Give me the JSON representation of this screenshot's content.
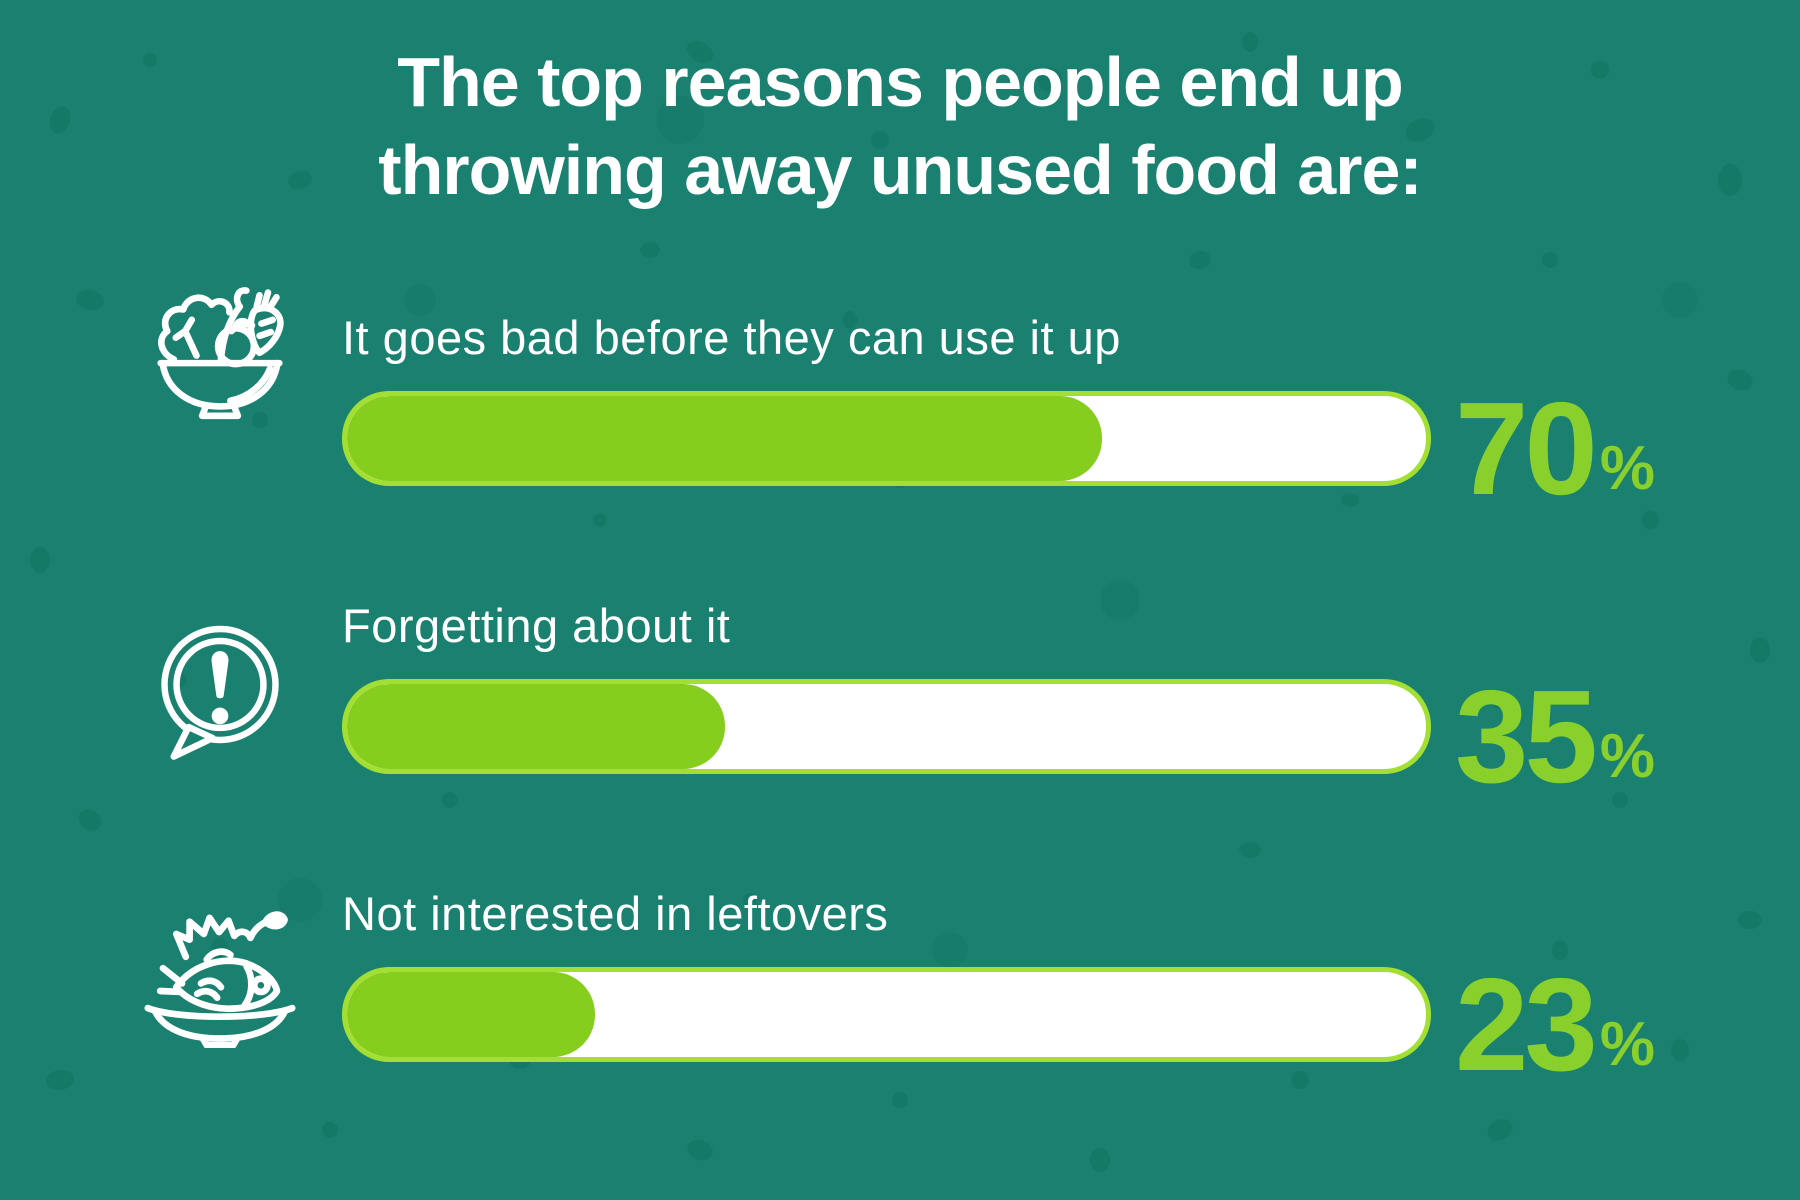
{
  "page": {
    "background_color": "#1a8170",
    "speckle_color": "#0d6a57",
    "bar_fill_color": "#85ce1d",
    "bar_border_color": "#a3df33",
    "bar_track_color": "#ffffff",
    "percent_text_color": "#8ad02c",
    "text_color": "#ffffff"
  },
  "title": {
    "lines": [
      "The top reasons people end up",
      "throwing away unused food are:"
    ]
  },
  "chart_data": {
    "type": "bar",
    "orientation": "horizontal",
    "title": "The top reasons people end up throwing away unused food are:",
    "value_range": [
      0,
      100
    ],
    "unit": "%",
    "grid": false,
    "legend": false,
    "categories": [
      "It goes bad before they can use it up",
      "Forgetting about it",
      "Not interested in leftovers"
    ],
    "values": [
      70,
      35,
      23
    ],
    "items": [
      {
        "label": "It goes bad before they can use it up",
        "value": 70,
        "unit": "%",
        "icon": "salad-bowl-icon"
      },
      {
        "label": "Forgetting about it",
        "value": 35,
        "unit": "%",
        "icon": "alert-speech-bubble-icon"
      },
      {
        "label": "Not interested in leftovers",
        "value": 23,
        "unit": "%",
        "icon": "fish-plate-icon"
      }
    ]
  }
}
